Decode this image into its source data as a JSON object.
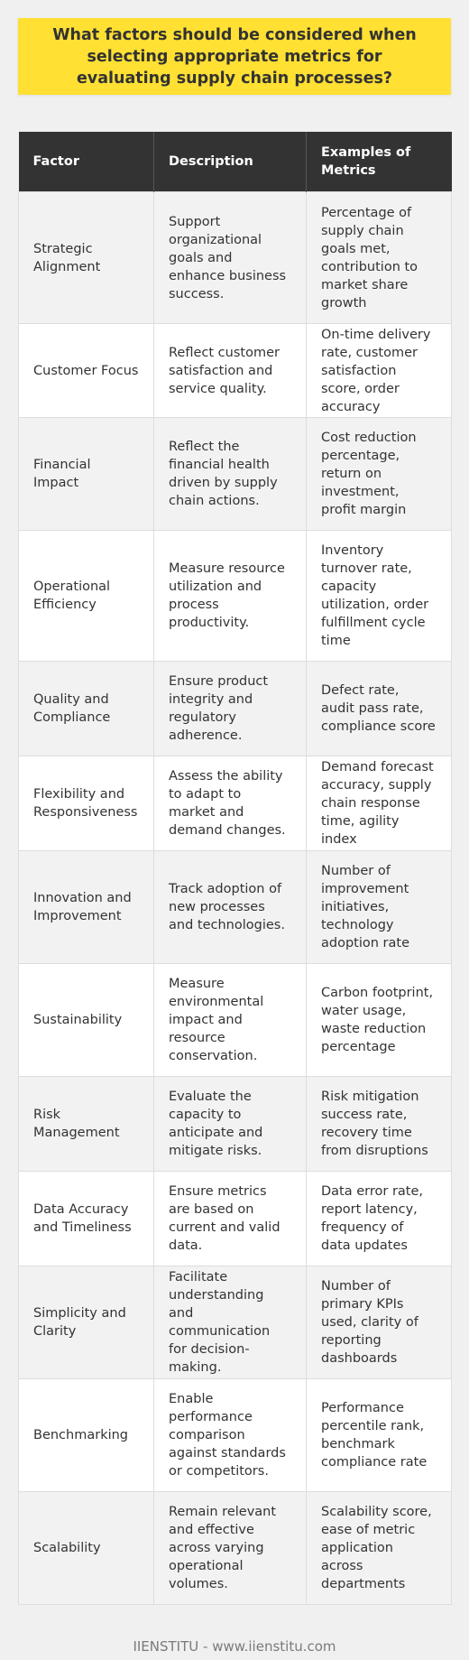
{
  "title": "What factors should be considered when selecting appropriate metrics for evaluating supply chain processes?",
  "table": {
    "headers": [
      "Factor",
      "Description",
      "Examples of Metrics"
    ],
    "rows": [
      {
        "factor": "Strategic Alignment",
        "description": "Support organizational goals and enhance business success.",
        "examples": "Percentage of supply chain goals met, contribution to market share growth"
      },
      {
        "factor": "Customer Focus",
        "description": "Reflect customer satisfaction and service quality.",
        "examples": "On-time delivery rate, customer satisfaction score, order accuracy"
      },
      {
        "factor": "Financial Impact",
        "description": "Reflect the financial health driven by supply chain actions.",
        "examples": "Cost reduction percentage, return on investment, profit margin"
      },
      {
        "factor": "Operational Efficiency",
        "description": "Measure resource utilization and process productivity.",
        "examples": "Inventory turnover rate, capacity utilization, order fulfillment cycle time"
      },
      {
        "factor": "Quality and Compliance",
        "description": "Ensure product integrity and regulatory adherence.",
        "examples": "Defect rate, audit pass rate, compliance score"
      },
      {
        "factor": "Flexibility and Responsiveness",
        "description": "Assess the ability to adapt to market and demand changes.",
        "examples": "Demand forecast accuracy, supply chain response time, agility index"
      },
      {
        "factor": "Innovation and Improvement",
        "description": "Track adoption of new processes and technologies.",
        "examples": "Number of improvement initiatives, technology adoption rate"
      },
      {
        "factor": "Sustainability",
        "description": "Measure environmental impact and resource conservation.",
        "examples": "Carbon footprint, water usage, waste reduction percentage"
      },
      {
        "factor": "Risk Management",
        "description": "Evaluate the capacity to anticipate and mitigate risks.",
        "examples": "Risk mitigation success rate, recovery time from disruptions"
      },
      {
        "factor": "Data Accuracy and Timeliness",
        "description": "Ensure metrics are based on current and valid data.",
        "examples": "Data error rate, report latency, frequency of data updates"
      },
      {
        "factor": "Simplicity and Clarity",
        "description": "Facilitate understanding and communication for decision-making.",
        "examples": "Number of primary KPIs used, clarity of reporting dashboards"
      },
      {
        "factor": "Benchmarking",
        "description": "Enable performance comparison against standards or competitors.",
        "examples": "Performance percentile rank, benchmark compliance rate"
      },
      {
        "factor": "Scalability",
        "description": "Remain relevant and effective across varying operational volumes.",
        "examples": "Scalability score, ease of metric application across departments"
      }
    ]
  },
  "footer": "IIENSTITU - www.iienstitu.com"
}
